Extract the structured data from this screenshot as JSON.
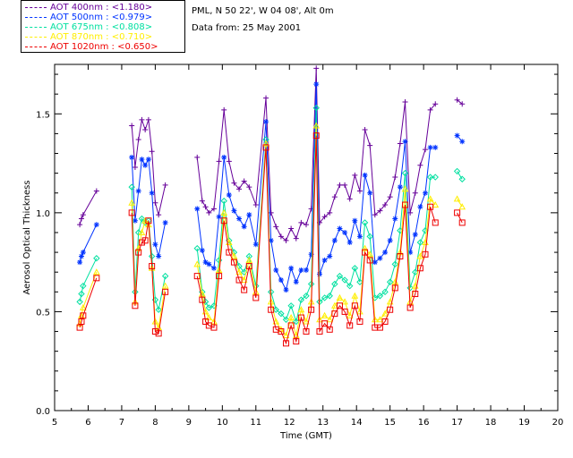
{
  "header": {
    "site": "PML, N 50 22', W 04 08', Alt 0m",
    "date": "Data from: 25 May 2001"
  },
  "legend": [
    {
      "label": "AOT  400nm : <1.180>",
      "color": "#660099"
    },
    {
      "label": "AOT  500nm : <0.979>",
      "color": "#0033ff"
    },
    {
      "label": "AOT  675nm : <0.808>",
      "color": "#00e0a0"
    },
    {
      "label": "AOT  870nm : <0.710>",
      "color": "#ffee00"
    },
    {
      "label": "AOT 1020nm : <0.650>",
      "color": "#ee0000"
    }
  ],
  "chart_data": {
    "type": "line",
    "title": "",
    "xlabel": "Time (GMT)",
    "ylabel": "Aerosol Optical Thickness",
    "xlim": [
      5,
      20
    ],
    "ylim": [
      0,
      1.75
    ],
    "xticks": [
      "5",
      "6",
      "7",
      "8",
      "9",
      "10",
      "11",
      "12",
      "13",
      "14",
      "15",
      "16",
      "17",
      "18",
      "19",
      "20"
    ],
    "yticks": [
      "0.0",
      "0.5",
      "1.0",
      "1.5"
    ],
    "x": [
      5.75,
      5.8,
      5.85,
      6.25,
      7.3,
      7.4,
      7.5,
      7.6,
      7.7,
      7.8,
      7.9,
      8.0,
      8.1,
      8.3,
      9.25,
      9.4,
      9.5,
      9.6,
      9.75,
      9.9,
      10.05,
      10.2,
      10.35,
      10.5,
      10.65,
      10.8,
      11.0,
      11.3,
      11.45,
      11.6,
      11.75,
      11.9,
      12.05,
      12.2,
      12.35,
      12.5,
      12.65,
      12.8,
      12.9,
      13.05,
      13.2,
      13.35,
      13.5,
      13.65,
      13.8,
      13.95,
      14.1,
      14.25,
      14.4,
      14.55,
      14.7,
      14.85,
      15.0,
      15.15,
      15.3,
      15.45,
      15.6,
      15.75,
      15.9,
      16.05,
      16.2,
      16.35,
      17.0,
      17.15
    ],
    "series": [
      {
        "name": "AOT 400nm",
        "marker": "plus",
        "values": [
          0.94,
          0.97,
          0.99,
          1.11,
          1.44,
          1.23,
          1.37,
          1.47,
          1.42,
          1.47,
          1.31,
          1.05,
          0.99,
          1.14,
          1.28,
          1.06,
          1.03,
          1.0,
          1.02,
          1.26,
          1.52,
          1.26,
          1.15,
          1.12,
          1.16,
          1.13,
          1.04,
          1.58,
          1.0,
          0.93,
          0.88,
          0.86,
          0.92,
          0.87,
          0.95,
          0.94,
          1.02,
          1.73,
          0.95,
          0.98,
          1.0,
          1.08,
          1.14,
          1.14,
          1.07,
          1.19,
          1.11,
          1.42,
          1.34,
          0.99,
          1.01,
          1.04,
          1.08,
          1.18,
          1.35,
          1.56,
          1.0,
          1.1,
          1.24,
          1.32,
          1.52,
          1.55,
          1.57,
          1.55
        ]
      },
      {
        "name": "AOT 500nm",
        "marker": "asterisk",
        "values": [
          0.75,
          0.78,
          0.8,
          0.94,
          1.28,
          0.96,
          1.11,
          1.27,
          1.24,
          1.27,
          1.1,
          0.84,
          0.78,
          0.95,
          1.02,
          0.81,
          0.75,
          0.74,
          0.72,
          0.98,
          1.28,
          1.09,
          1.01,
          0.97,
          0.93,
          0.99,
          0.84,
          1.46,
          0.86,
          0.71,
          0.66,
          0.61,
          0.72,
          0.65,
          0.71,
          0.71,
          0.79,
          1.65,
          0.69,
          0.76,
          0.78,
          0.86,
          0.92,
          0.9,
          0.85,
          0.96,
          0.88,
          1.19,
          1.1,
          0.75,
          0.77,
          0.8,
          0.86,
          0.97,
          1.13,
          1.36,
          0.8,
          0.89,
          1.03,
          1.1,
          1.33,
          1.33,
          1.39,
          1.36
        ]
      },
      {
        "name": "AOT 675nm",
        "marker": "diamond",
        "values": [
          0.55,
          0.59,
          0.63,
          0.77,
          1.13,
          0.6,
          0.9,
          0.97,
          0.95,
          0.96,
          0.78,
          0.56,
          0.51,
          0.68,
          0.82,
          0.6,
          0.55,
          0.52,
          0.53,
          0.76,
          1.06,
          0.86,
          0.8,
          0.73,
          0.7,
          0.78,
          0.63,
          1.37,
          0.6,
          0.51,
          0.49,
          0.46,
          0.53,
          0.45,
          0.56,
          0.58,
          0.64,
          1.53,
          0.55,
          0.57,
          0.58,
          0.64,
          0.68,
          0.66,
          0.63,
          0.72,
          0.65,
          0.95,
          0.88,
          0.57,
          0.58,
          0.6,
          0.65,
          0.74,
          0.91,
          1.2,
          0.62,
          0.7,
          0.85,
          0.91,
          1.18,
          1.18,
          1.21,
          1.17
        ]
      },
      {
        "name": "AOT 870nm",
        "marker": "triangle",
        "values": [
          0.44,
          0.48,
          0.52,
          0.7,
          1.05,
          0.55,
          0.82,
          0.9,
          0.96,
          0.94,
          0.72,
          0.45,
          0.42,
          0.63,
          0.74,
          0.59,
          0.5,
          0.47,
          0.45,
          0.71,
          1.0,
          0.85,
          0.78,
          0.7,
          0.66,
          0.76,
          0.6,
          1.35,
          0.55,
          0.45,
          0.41,
          0.38,
          0.47,
          0.38,
          0.51,
          0.45,
          0.55,
          1.44,
          0.46,
          0.48,
          0.46,
          0.53,
          0.57,
          0.55,
          0.48,
          0.58,
          0.5,
          0.82,
          0.79,
          0.46,
          0.46,
          0.49,
          0.55,
          0.65,
          0.8,
          1.12,
          0.55,
          0.63,
          0.78,
          0.85,
          1.07,
          1.04,
          1.07,
          1.03
        ]
      },
      {
        "name": "AOT 1020nm",
        "marker": "square",
        "values": [
          0.42,
          0.45,
          0.48,
          0.67,
          1.0,
          0.53,
          0.8,
          0.85,
          0.86,
          0.96,
          0.73,
          0.4,
          0.39,
          0.6,
          0.68,
          0.56,
          0.45,
          0.43,
          0.42,
          0.68,
          0.96,
          0.8,
          0.75,
          0.66,
          0.61,
          0.73,
          0.57,
          1.33,
          0.51,
          0.41,
          0.4,
          0.34,
          0.43,
          0.35,
          0.47,
          0.4,
          0.51,
          1.39,
          0.4,
          0.44,
          0.41,
          0.49,
          0.53,
          0.5,
          0.43,
          0.53,
          0.45,
          0.8,
          0.76,
          0.42,
          0.42,
          0.45,
          0.51,
          0.62,
          0.78,
          1.04,
          0.52,
          0.59,
          0.72,
          0.79,
          1.03,
          0.95,
          1.0,
          0.95
        ]
      }
    ]
  }
}
